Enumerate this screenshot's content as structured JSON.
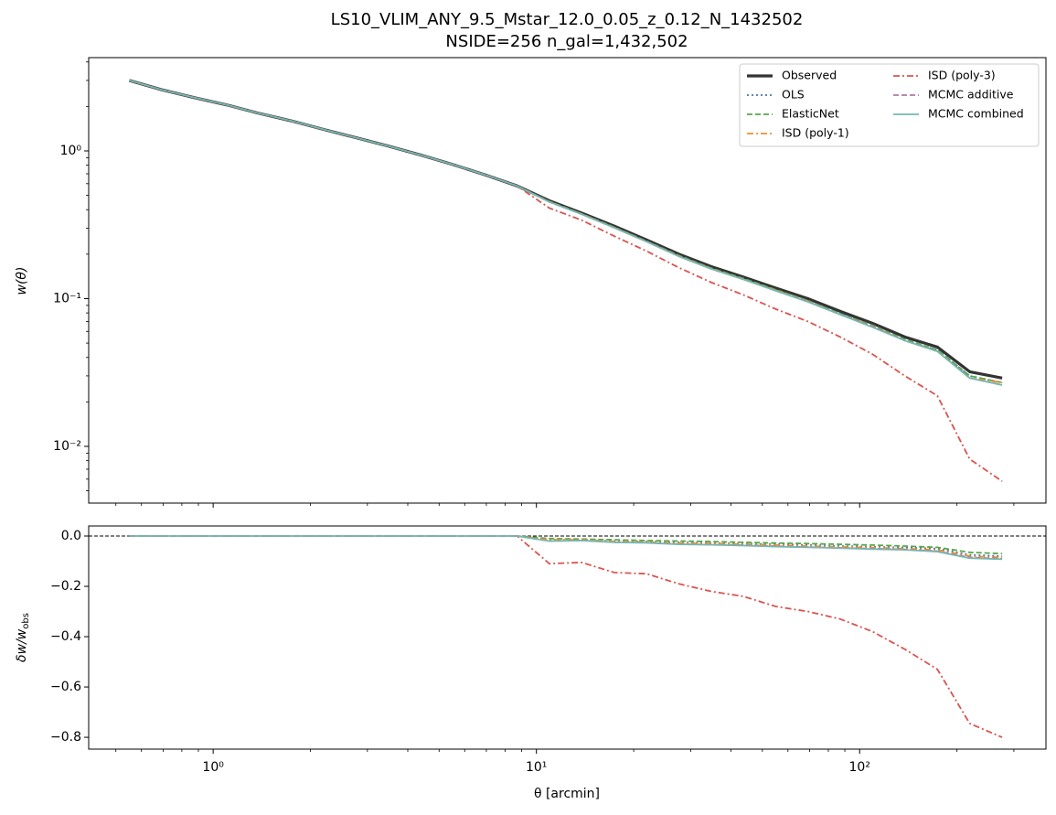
{
  "chart_data": [
    {
      "type": "line",
      "title": "LS10_VLIM_ANY_9.5_Mstar_12.0_0.05_z_0.12_N_1432502",
      "subtitle": "NSIDE=256  n_gal=1,432,502",
      "ylabel": "w(θ)",
      "xscale": "log",
      "yscale": "log",
      "show_xticklabels": false,
      "xlim": [
        0.412,
        377
      ],
      "ylim": [
        0.00413,
        4.28
      ],
      "xticks": [
        1,
        10,
        100
      ],
      "yticks": [
        {
          "value": 1,
          "label": "10⁰"
        },
        {
          "value": 0.1,
          "label": "10⁻¹"
        },
        {
          "value": 0.01,
          "label": "10⁻²"
        }
      ],
      "legend": {
        "loc": "upper right",
        "ncol": 2
      },
      "x": [
        0.55,
        0.69,
        0.87,
        1.1,
        1.38,
        1.74,
        2.19,
        2.76,
        3.47,
        4.37,
        5.5,
        6.92,
        8.71,
        10.97,
        13.8,
        17.4,
        21.9,
        27.6,
        34.7,
        43.7,
        55,
        69.2,
        87.1,
        109.7,
        138,
        174,
        219,
        276
      ],
      "series": [
        {
          "name": "Observed",
          "color": "#333333",
          "linestyle": "solid",
          "values": [
            3.0,
            2.6,
            2.3,
            2.05,
            1.8,
            1.6,
            1.4,
            1.23,
            1.08,
            0.94,
            0.81,
            0.69,
            0.58,
            0.46,
            0.38,
            0.31,
            0.25,
            0.2,
            0.165,
            0.14,
            0.118,
            0.1,
            0.082,
            0.068,
            0.055,
            0.047,
            0.032,
            0.029
          ]
        },
        {
          "name": "OLS",
          "color": "#4c72b0",
          "linestyle": "dotted",
          "values": [
            3.0,
            2.6,
            2.3,
            2.05,
            1.8,
            1.6,
            1.4,
            1.23,
            1.08,
            0.94,
            0.81,
            0.69,
            0.58,
            0.453,
            0.374,
            0.304,
            0.245,
            0.195,
            0.16,
            0.136,
            0.114,
            0.096,
            0.079,
            0.065,
            0.052,
            0.045,
            0.03,
            0.027
          ]
        },
        {
          "name": "ElasticNet",
          "color": "#55a848",
          "linestyle": "dashed",
          "values": [
            3.0,
            2.6,
            2.3,
            2.05,
            1.8,
            1.6,
            1.4,
            1.23,
            1.08,
            0.94,
            0.81,
            0.69,
            0.58,
            0.455,
            0.375,
            0.305,
            0.245,
            0.196,
            0.161,
            0.137,
            0.115,
            0.097,
            0.079,
            0.066,
            0.053,
            0.045,
            0.03,
            0.027
          ]
        },
        {
          "name": "ISD (poly-1)",
          "color": "#f28e2b",
          "linestyle": "dashdot",
          "values": [
            3.0,
            2.6,
            2.3,
            2.05,
            1.8,
            1.6,
            1.4,
            1.23,
            1.08,
            0.94,
            0.81,
            0.69,
            0.58,
            0.453,
            0.374,
            0.303,
            0.244,
            0.194,
            0.16,
            0.135,
            0.114,
            0.096,
            0.078,
            0.065,
            0.052,
            0.044,
            0.029,
            0.027
          ]
        },
        {
          "name": "ISD (poly-3)",
          "color": "#d95550",
          "linestyle": "dashdot",
          "values": [
            3.0,
            2.6,
            2.3,
            2.05,
            1.8,
            1.6,
            1.4,
            1.23,
            1.08,
            0.94,
            0.81,
            0.69,
            0.58,
            0.41,
            0.34,
            0.265,
            0.21,
            0.162,
            0.129,
            0.106,
            0.085,
            0.07,
            0.055,
            0.042,
            0.03,
            0.022,
            0.0082,
            0.0058
          ]
        },
        {
          "name": "MCMC additive",
          "color": "#b07aa1",
          "linestyle": "dashed",
          "values": [
            3.0,
            2.6,
            2.3,
            2.05,
            1.8,
            1.6,
            1.4,
            1.23,
            1.08,
            0.94,
            0.81,
            0.69,
            0.58,
            0.451,
            0.373,
            0.302,
            0.244,
            0.194,
            0.159,
            0.135,
            0.113,
            0.096,
            0.078,
            0.065,
            0.052,
            0.044,
            0.029,
            0.026
          ]
        },
        {
          "name": "MCMC combined",
          "color": "#76b7b2",
          "linestyle": "solid",
          "values": [
            3.0,
            2.6,
            2.3,
            2.05,
            1.8,
            1.6,
            1.4,
            1.23,
            1.08,
            0.94,
            0.81,
            0.69,
            0.58,
            0.451,
            0.373,
            0.302,
            0.243,
            0.193,
            0.159,
            0.135,
            0.113,
            0.095,
            0.078,
            0.064,
            0.052,
            0.044,
            0.029,
            0.026
          ]
        }
      ]
    },
    {
      "type": "line",
      "ylabel": "δw/w",
      "ylabel_subscript": "obs",
      "xlabel": "θ [arcmin]",
      "xscale": "log",
      "yscale": "linear",
      "show_xticklabels": true,
      "xlim": [
        0.412,
        377
      ],
      "ylim": [
        -0.847,
        0.04
      ],
      "hline": 0,
      "xticks": [
        {
          "value": 1,
          "label": "10⁰"
        },
        {
          "value": 10,
          "label": "10¹"
        },
        {
          "value": 100,
          "label": "10²"
        }
      ],
      "yticks": [
        {
          "value": 0,
          "label": "0.0"
        },
        {
          "value": -0.2,
          "label": "−0.2"
        },
        {
          "value": -0.4,
          "label": "−0.4"
        },
        {
          "value": -0.6,
          "label": "−0.6"
        },
        {
          "value": -0.8,
          "label": "−0.8"
        }
      ],
      "x": [
        0.55,
        0.69,
        0.87,
        1.1,
        1.38,
        1.74,
        2.19,
        2.76,
        3.47,
        4.37,
        5.5,
        6.92,
        8.71,
        10.97,
        13.8,
        17.4,
        21.9,
        27.6,
        34.7,
        43.7,
        55,
        69.2,
        87.1,
        109.7,
        138,
        174,
        219,
        276
      ],
      "series": [
        {
          "color": "#4c72b0",
          "linestyle": "dotted",
          "values": [
            0,
            0,
            0,
            0,
            0,
            0,
            0,
            0,
            0,
            0,
            0,
            0,
            0,
            -0.015,
            -0.015,
            -0.02,
            -0.022,
            -0.025,
            -0.028,
            -0.03,
            -0.033,
            -0.036,
            -0.04,
            -0.043,
            -0.046,
            -0.05,
            -0.075,
            -0.08
          ]
        },
        {
          "color": "#55a848",
          "linestyle": "dashed",
          "values": [
            0,
            0,
            0,
            0,
            0,
            0,
            0,
            0,
            0,
            0,
            0,
            0,
            0,
            -0.01,
            -0.012,
            -0.015,
            -0.018,
            -0.02,
            -0.022,
            -0.025,
            -0.028,
            -0.03,
            -0.033,
            -0.036,
            -0.04,
            -0.045,
            -0.065,
            -0.07
          ]
        },
        {
          "color": "#f28e2b",
          "linestyle": "dashdot",
          "values": [
            0,
            0,
            0,
            0,
            0,
            0,
            0,
            0,
            0,
            0,
            0,
            0,
            0,
            -0.015,
            -0.015,
            -0.022,
            -0.024,
            -0.028,
            -0.03,
            -0.033,
            -0.036,
            -0.04,
            -0.043,
            -0.046,
            -0.05,
            -0.055,
            -0.08,
            -0.085
          ]
        },
        {
          "color": "#d95550",
          "linestyle": "dashdot",
          "values": [
            0,
            0,
            0,
            0,
            0,
            0,
            0,
            0,
            0,
            0,
            0,
            0,
            0,
            -0.11,
            -0.105,
            -0.145,
            -0.15,
            -0.19,
            -0.22,
            -0.24,
            -0.28,
            -0.3,
            -0.33,
            -0.38,
            -0.45,
            -0.53,
            -0.745,
            -0.8
          ]
        },
        {
          "color": "#b07aa1",
          "linestyle": "dashed",
          "values": [
            0,
            0,
            0,
            0,
            0,
            0,
            0,
            0,
            0,
            0,
            0,
            0,
            0,
            -0.02,
            -0.018,
            -0.025,
            -0.026,
            -0.032,
            -0.034,
            -0.036,
            -0.04,
            -0.044,
            -0.047,
            -0.05,
            -0.053,
            -0.06,
            -0.085,
            -0.09
          ]
        },
        {
          "color": "#76b7b2",
          "linestyle": "solid",
          "values": [
            0,
            0,
            0,
            0,
            0,
            0,
            0,
            0,
            0,
            0,
            0,
            0,
            0,
            -0.02,
            -0.018,
            -0.025,
            -0.027,
            -0.033,
            -0.035,
            -0.038,
            -0.042,
            -0.045,
            -0.048,
            -0.052,
            -0.055,
            -0.062,
            -0.088,
            -0.092
          ]
        }
      ]
    }
  ]
}
